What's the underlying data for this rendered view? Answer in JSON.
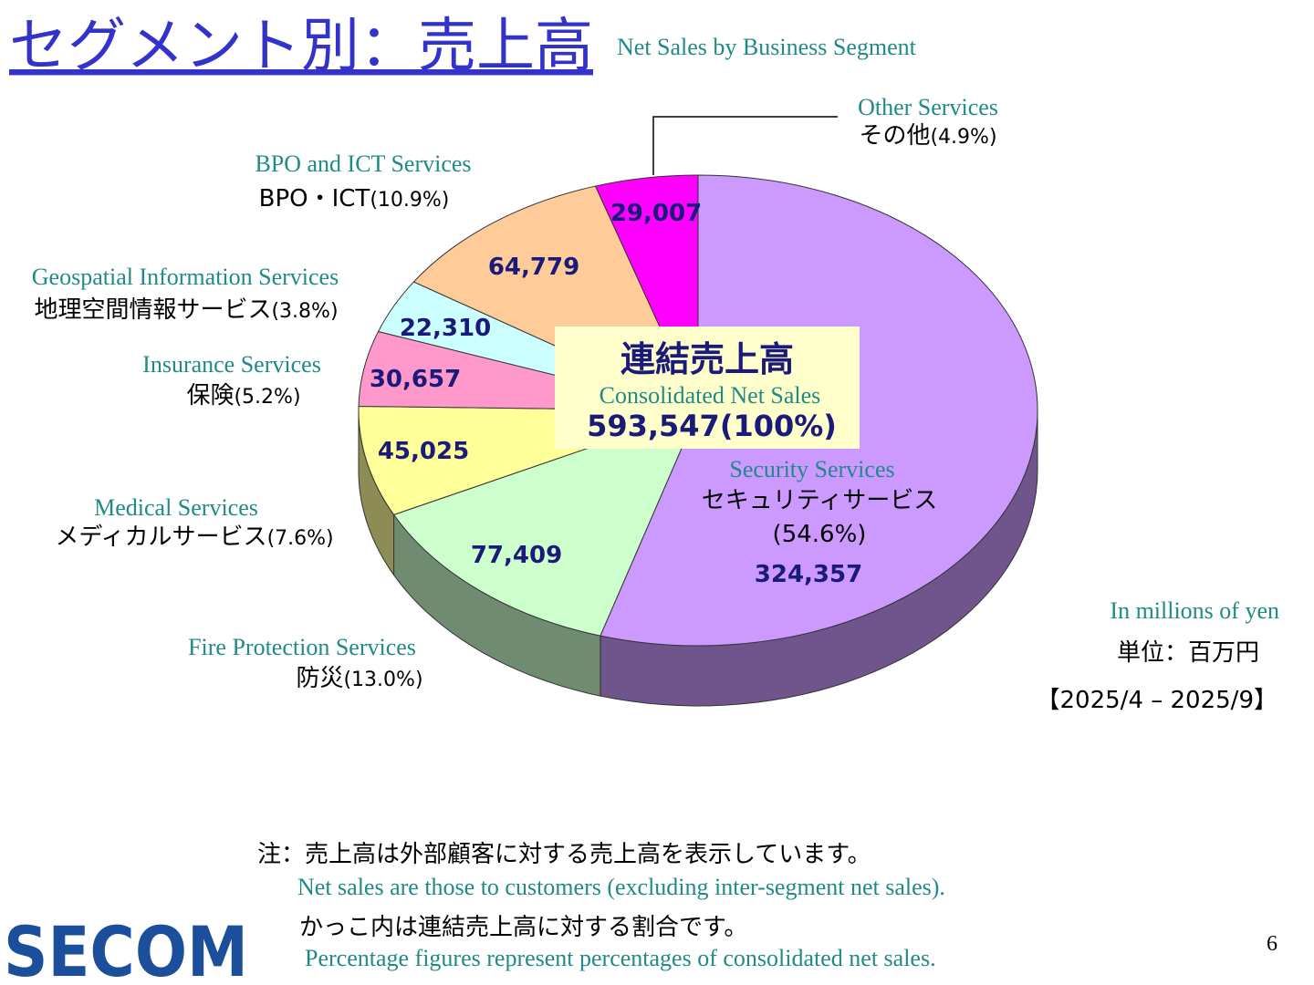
{
  "title": "セグメント別：売上高",
  "subtitle": "Net Sales by Business Segment",
  "chart_data": {
    "type": "pie",
    "categories": [
      "Security Services",
      "Fire Protection Services",
      "Medical Services",
      "Insurance Services",
      "Geospatial Information Services",
      "BPO and ICT Services",
      "Other Services"
    ],
    "names_ja": [
      "セキュリティサービス",
      "防災",
      "メディカルサービス",
      "保険",
      "地理空間情報サービス",
      "BPO・ICT",
      "その他"
    ],
    "percent_labels": [
      "(54.6%)",
      "(13.0%)",
      "(7.6%)",
      "(5.2%)",
      "(3.8%)",
      "(10.9%)",
      "(4.9%)"
    ],
    "values": [
      324357,
      77409,
      45025,
      30657,
      22310,
      64779,
      29007
    ],
    "value_labels": [
      "324,357",
      "77,409",
      "45,025",
      "30,657",
      "22,310",
      "64,779",
      "29,007"
    ],
    "colors": [
      "#cc99ff",
      "#ccffcc",
      "#ffff99",
      "#ff99cc",
      "#ccffff",
      "#ffcc99",
      "#ff00ff"
    ],
    "total": {
      "label_ja": "連結売上高",
      "label_en": "Consolidated Net Sales",
      "value": 593547,
      "value_label": "593,547(100%)"
    }
  },
  "unit": {
    "en": "In millions of yen",
    "ja": "単位：百万円",
    "period": "【2025/4 – 2025/9】"
  },
  "notes": [
    "注：売上高は外部顧客に対する売上高を表示しています。",
    "Net sales are those to customers (excluding inter-segment net sales).",
    "かっこ内は連結売上高に対する割合です。",
    "Percentage figures represent percentages of consolidated net sales."
  ],
  "logo": "SECOM",
  "page_number": "6"
}
